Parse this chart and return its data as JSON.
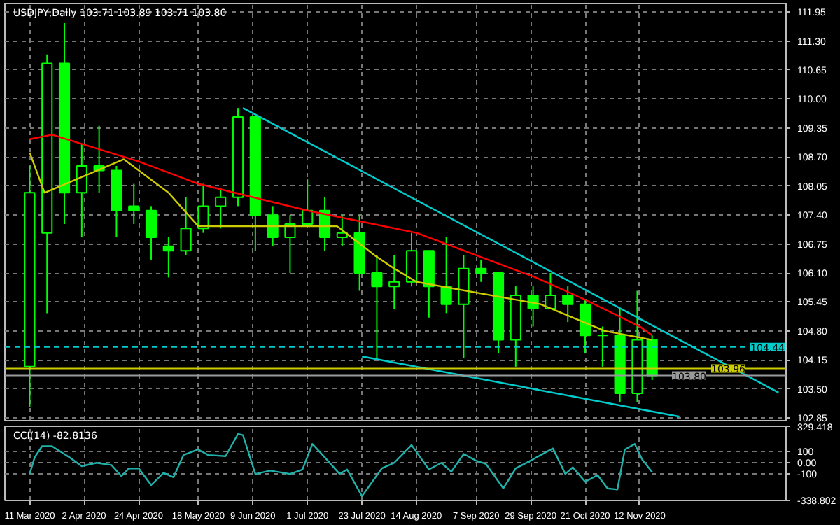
{
  "chart_data": [
    {
      "type": "candlestick",
      "title": "USDJPY,Daily 103.71 103.89 103.71 103.80",
      "xlim": [
        "2020-03-01",
        "2021-01-10"
      ],
      "xticks": [
        {
          "value": "2020-03-11",
          "label": null
        },
        {
          "value": "2020-04-02",
          "label": null
        },
        {
          "value": "2020-04-24",
          "label": null
        },
        {
          "value": "2020-05-18",
          "label": null
        },
        {
          "value": "2020-06-09",
          "label": null
        },
        {
          "value": "2020-07-01",
          "label": null
        },
        {
          "value": "2020-07-23",
          "label": null
        },
        {
          "value": "2020-08-14",
          "label": null
        },
        {
          "value": "2020-09-07",
          "label": null
        },
        {
          "value": "2020-09-29",
          "label": null
        },
        {
          "value": "2020-10-21",
          "label": null
        },
        {
          "value": "2020-11-12",
          "label": null
        }
      ],
      "ylim": [
        102.79,
        112.14
      ],
      "yticks": [
        111.95,
        {
          "value": 111.3,
          "label": "111.30"
        },
        110.65,
        {
          "value": 110,
          "label": "110.00"
        },
        109.35,
        {
          "value": 108.7,
          "label": "108.70"
        },
        108.05,
        {
          "value": 107.4,
          "label": "107.40"
        },
        106.75,
        {
          "value": 106.1,
          "label": "106.10"
        },
        105.45,
        {
          "value": 104.8,
          "label": "104.80"
        },
        104.15,
        {
          "value": 103.5,
          "label": "103.50"
        },
        102.85
      ],
      "tick_labels": "y",
      "grid": true,
      "series": [
        {
          "type": "candlestick",
          "color": "#00ff00",
          "x": [
            "2020-03-11",
            "2020-03-18",
            "2020-03-25",
            "2020-04-01",
            "2020-04-08",
            "2020-04-15",
            "2020-04-22",
            "2020-04-29",
            "2020-05-06",
            "2020-05-13",
            "2020-05-20",
            "2020-05-27",
            "2020-06-03",
            "2020-06-10",
            "2020-06-17",
            "2020-06-24",
            "2020-07-01",
            "2020-07-08",
            "2020-07-15",
            "2020-07-22",
            "2020-07-29",
            "2020-08-05",
            "2020-08-12",
            "2020-08-19",
            "2020-08-26",
            "2020-09-02",
            "2020-09-09",
            "2020-09-16",
            "2020-09-23",
            "2020-09-30",
            "2020-10-07",
            "2020-10-14",
            "2020-10-21",
            "2020-10-28",
            "2020-11-04",
            "2020-11-11",
            "2020-11-17"
          ],
          "ohlc": [
            [
              104.0,
              108.5,
              103.1,
              107.9
            ],
            [
              107.0,
              111.0,
              105.2,
              110.8
            ],
            [
              110.8,
              111.7,
              107.2,
              107.9
            ],
            [
              107.9,
              109.0,
              106.9,
              108.5
            ],
            [
              108.5,
              109.4,
              107.9,
              108.4
            ],
            [
              108.4,
              108.5,
              106.9,
              107.5
            ],
            [
              107.6,
              108.1,
              107.2,
              107.5
            ],
            [
              107.5,
              107.6,
              106.4,
              106.9
            ],
            [
              106.7,
              106.9,
              106.0,
              106.6
            ],
            [
              106.6,
              107.8,
              106.5,
              107.1
            ],
            [
              107.1,
              108.1,
              107.0,
              107.6
            ],
            [
              107.6,
              108.0,
              107.1,
              107.8
            ],
            [
              107.8,
              109.8,
              107.6,
              109.6
            ],
            [
              109.6,
              109.6,
              106.6,
              107.4
            ],
            [
              107.4,
              107.6,
              106.7,
              106.9
            ],
            [
              106.9,
              107.4,
              106.1,
              107.2
            ],
            [
              107.2,
              108.2,
              107.2,
              107.5
            ],
            [
              107.5,
              107.8,
              106.6,
              106.9
            ],
            [
              106.9,
              107.4,
              106.7,
              107.0
            ],
            [
              107.0,
              107.4,
              105.7,
              106.1
            ],
            [
              106.1,
              106.5,
              104.2,
              105.8
            ],
            [
              105.8,
              106.5,
              105.3,
              105.9
            ],
            [
              105.9,
              107.0,
              105.8,
              106.6
            ],
            [
              106.6,
              106.6,
              105.1,
              105.8
            ],
            [
              105.8,
              106.9,
              105.2,
              105.4
            ],
            [
              105.4,
              106.5,
              104.2,
              106.2
            ],
            [
              106.2,
              106.4,
              105.9,
              106.1
            ],
            [
              106.1,
              106.1,
              104.3,
              104.6
            ],
            [
              104.6,
              105.8,
              104.0,
              105.6
            ],
            [
              105.6,
              105.8,
              104.9,
              105.3
            ],
            [
              105.3,
              106.1,
              105.3,
              105.6
            ],
            [
              105.6,
              105.8,
              105.0,
              105.4
            ],
            [
              105.4,
              105.5,
              104.3,
              104.7
            ],
            [
              104.7,
              104.9,
              104.0,
              104.7
            ],
            [
              104.7,
              105.3,
              103.2,
              103.4
            ],
            [
              103.4,
              105.7,
              103.2,
              104.6
            ],
            [
              104.6,
              104.7,
              103.7,
              103.8
            ]
          ]
        },
        {
          "type": "line",
          "color": "#ff0000",
          "x": [
            "2020-03-11",
            "2020-03-20",
            "2020-04-24",
            "2020-05-18",
            "2020-07-01",
            "2020-08-14",
            "2020-09-07",
            "2020-10-01",
            "2020-10-21",
            "2020-11-12",
            "2020-11-17"
          ],
          "values": [
            109.1,
            109.2,
            108.6,
            108.1,
            107.5,
            107.0,
            106.5,
            106.0,
            105.5,
            104.9,
            104.7
          ]
        },
        {
          "type": "line",
          "color": "#cccc00",
          "x": [
            "2020-03-11",
            "2020-03-17",
            "2020-04-18",
            "2020-05-06",
            "2020-05-18",
            "2020-07-13",
            "2020-07-28",
            "2020-08-05",
            "2020-08-14",
            "2020-10-03",
            "2020-10-29",
            "2020-11-17"
          ],
          "values": [
            108.8,
            107.9,
            108.65,
            107.9,
            107.15,
            107.15,
            106.5,
            106.2,
            105.9,
            105.4,
            104.8,
            104.6
          ]
        },
        {
          "type": "line",
          "color": "#00cccc",
          "x": [
            "2020-06-05",
            "2021-01-07"
          ],
          "values": [
            109.8,
            103.42
          ]
        },
        {
          "type": "line",
          "color": "#00cccc",
          "x": [
            "2020-07-23",
            "2020-11-28"
          ],
          "values": [
            104.23,
            102.88
          ]
        }
      ],
      "ref_lines": [
        {
          "axis": "y",
          "value": 104.44,
          "label": "104.44",
          "color": "#00cccc",
          "line_style": "dashed"
        },
        {
          "axis": "y",
          "value": 103.96,
          "label": "103.96",
          "color": "#cccc00",
          "line_style": "solid"
        },
        {
          "axis": "y",
          "value": 103.8,
          "label": "103.80",
          "color": "#9a9a9a",
          "line_style": "solid"
        }
      ]
    },
    {
      "type": "line",
      "title": "CCI(14) -82.8136",
      "xlim": [
        "2020-03-01",
        "2021-01-10"
      ],
      "xticks": [
        {
          "value": "2020-03-11",
          "label": "11 Mar 2020"
        },
        {
          "value": "2020-04-02",
          "label": "2 Apr 2020"
        },
        {
          "value": "2020-04-24",
          "label": "24 Apr 2020"
        },
        {
          "value": "2020-05-18",
          "label": "18 May 2020"
        },
        {
          "value": "2020-06-09",
          "label": "9 Jun 2020"
        },
        {
          "value": "2020-07-01",
          "label": "1 Jul 2020"
        },
        {
          "value": "2020-07-23",
          "label": "23 Jul 2020"
        },
        {
          "value": "2020-08-14",
          "label": "14 Aug 2020"
        },
        {
          "value": "2020-09-07",
          "label": "7 Sep 2020"
        },
        {
          "value": "2020-09-29",
          "label": "29 Sep 2020"
        },
        {
          "value": "2020-10-21",
          "label": "21 Oct 2020"
        },
        {
          "value": "2020-11-12",
          "label": "12 Nov 2020"
        }
      ],
      "ylim": [
        -338.802,
        329.418
      ],
      "yticks": [
        329.418,
        100,
        {
          "value": 0,
          "label": "0.00"
        },
        -100,
        -338.802
      ],
      "grid": true,
      "series": [
        {
          "color": "#20b2aa",
          "x": [
            "2020-03-11",
            "2020-03-13",
            "2020-03-16",
            "2020-03-20",
            "2020-03-27",
            "2020-04-01",
            "2020-04-07",
            "2020-04-13",
            "2020-04-17",
            "2020-04-20",
            "2020-04-24",
            "2020-04-29",
            "2020-05-04",
            "2020-05-08",
            "2020-05-12",
            "2020-05-18",
            "2020-05-22",
            "2020-05-29",
            "2020-06-03",
            "2020-06-05",
            "2020-06-10",
            "2020-06-16",
            "2020-06-24",
            "2020-06-29",
            "2020-07-03",
            "2020-07-08",
            "2020-07-14",
            "2020-07-17",
            "2020-07-23",
            "2020-07-31",
            "2020-08-05",
            "2020-08-12",
            "2020-08-19",
            "2020-08-24",
            "2020-08-28",
            "2020-09-02",
            "2020-09-07",
            "2020-09-11",
            "2020-09-18",
            "2020-09-23",
            "2020-09-29",
            "2020-10-08",
            "2020-10-13",
            "2020-10-16",
            "2020-10-21",
            "2020-10-26",
            "2020-10-30",
            "2020-11-03",
            "2020-11-06",
            "2020-11-10",
            "2020-11-13",
            "2020-11-17"
          ],
          "values": [
            -100,
            50,
            150,
            150,
            50,
            -30,
            0,
            -20,
            -120,
            -50,
            -50,
            -200,
            -90,
            -130,
            70,
            120,
            70,
            60,
            260,
            250,
            -100,
            -70,
            -100,
            -60,
            170,
            50,
            -100,
            -60,
            -300,
            -50,
            0,
            160,
            -60,
            0,
            -80,
            80,
            20,
            -10,
            -230,
            -50,
            20,
            130,
            -100,
            -40,
            -170,
            -110,
            -230,
            -240,
            120,
            170,
            30,
            -83
          ]
        }
      ]
    }
  ]
}
